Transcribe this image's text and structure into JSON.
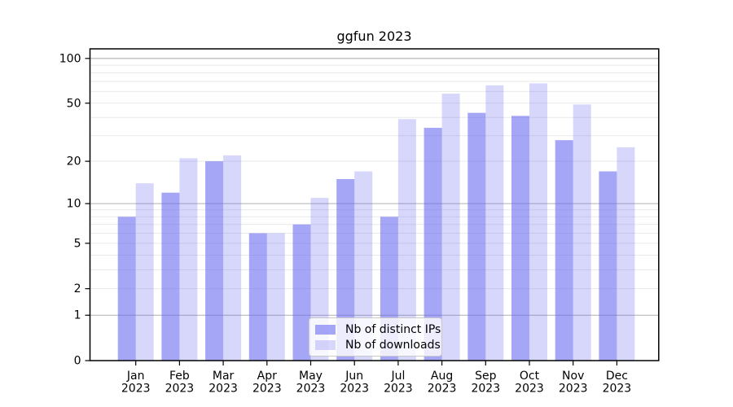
{
  "title": "ggfun 2023",
  "legend": {
    "items": [
      {
        "label": "Nb of distinct IPs",
        "color": "rgba(102,102,242,0.58)"
      },
      {
        "label": "Nb of downloads",
        "color": "rgba(102,102,242,0.26)"
      }
    ]
  },
  "colors": {
    "bar_dark": "rgba(102,102,242,0.58)",
    "bar_dark_hex": "#a9a9fb",
    "bar_light": "rgba(102,102,242,0.26)",
    "bar_light_hex": "#d9d9f9",
    "grid_major": "#b0b0b0",
    "grid_minor": "#e9e9e9",
    "axis": "#000000"
  },
  "chart_data": {
    "type": "bar",
    "title": "ggfun 2023",
    "categories": [
      "Jan",
      "Feb",
      "Mar",
      "Apr",
      "May",
      "Jun",
      "Jul",
      "Aug",
      "Sep",
      "Oct",
      "Nov",
      "Dec"
    ],
    "year_label": "2023",
    "series": [
      {
        "name": "Nb of distinct IPs",
        "values": [
          8,
          12,
          20,
          6,
          7,
          15,
          8,
          34,
          43,
          41,
          28,
          17
        ]
      },
      {
        "name": "Nb of downloads",
        "values": [
          14,
          21,
          22,
          6,
          11,
          17,
          39,
          58,
          66,
          68,
          49,
          25
        ]
      }
    ],
    "y_scale": "log10(x+1)",
    "ylim": [
      0,
      116
    ],
    "y_ticks": [
      0,
      1,
      2,
      5,
      10,
      20,
      50,
      100
    ],
    "y_major_gridlines": [
      1,
      10,
      100
    ],
    "y_minor_gridlines": [
      2,
      3,
      4,
      5,
      6,
      7,
      8,
      9,
      20,
      30,
      40,
      50,
      60,
      70,
      80,
      90
    ],
    "xlabel": "",
    "ylabel": "",
    "grid": true,
    "legend_position": "bottom-center-inside"
  }
}
